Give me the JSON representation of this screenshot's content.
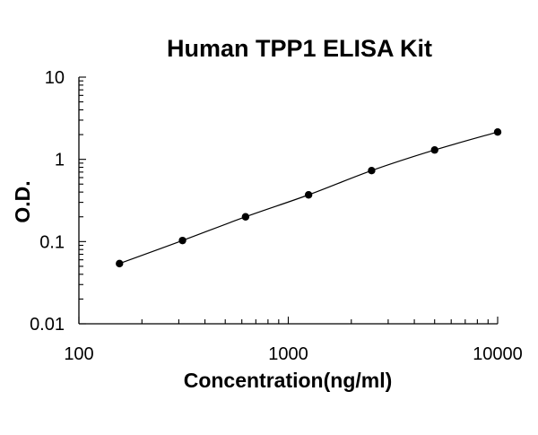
{
  "chart_data": {
    "type": "scatter",
    "title": "Human TPP1 ELISA Kit",
    "xlabel": "Concentration(ng/ml)",
    "ylabel": "O.D.",
    "x_scale": "log",
    "y_scale": "log",
    "xlim": [
      100,
      10000
    ],
    "ylim": [
      0.01,
      10
    ],
    "x_ticks": [
      "100",
      "1000",
      "10000"
    ],
    "y_ticks": [
      "0.01",
      "0.1",
      "1",
      "10"
    ],
    "grid": false,
    "legend": "none",
    "marker_color": "#000000",
    "line_color": "#000000",
    "series": [
      {
        "points": [
          {
            "x": 156.25,
            "y": 0.054
          },
          {
            "x": 312.5,
            "y": 0.103
          },
          {
            "x": 625,
            "y": 0.2
          },
          {
            "x": 1250,
            "y": 0.37
          },
          {
            "x": 2500,
            "y": 0.73
          },
          {
            "x": 5000,
            "y": 1.3
          },
          {
            "x": 10000,
            "y": 2.15
          }
        ]
      }
    ]
  }
}
